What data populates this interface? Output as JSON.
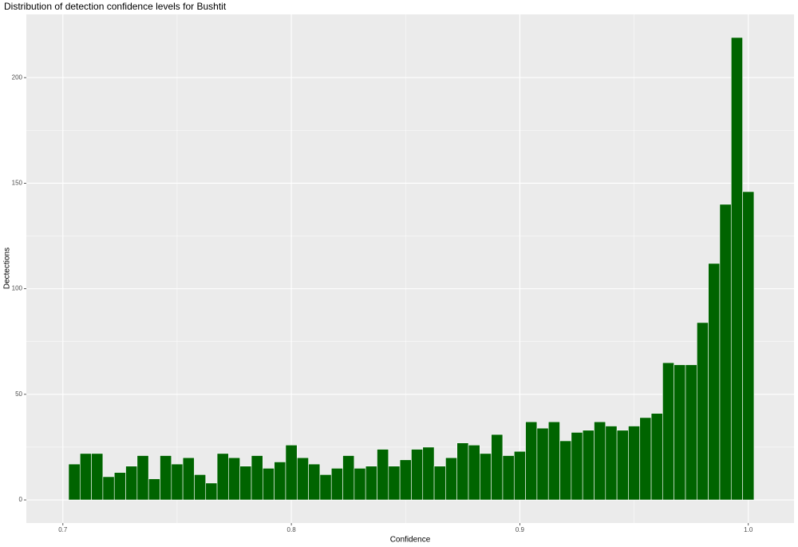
{
  "chart_data": {
    "type": "histogram",
    "title": "Distribution of detection confidence levels for Bushtit",
    "x_label": "Confidence",
    "y_label": "Dectections",
    "color": "#006400",
    "grid": true,
    "bins": [
      0.7025,
      0.7075,
      0.7125,
      0.7175,
      0.7225,
      0.7275,
      0.7325,
      0.7375,
      0.7425,
      0.7475,
      0.7525,
      0.7575,
      0.7625,
      0.7675,
      0.7725,
      0.7775,
      0.7825,
      0.7875,
      0.7925,
      0.7975,
      0.8025,
      0.8075,
      0.8125,
      0.8175,
      0.8225,
      0.8275,
      0.8325,
      0.8375,
      0.8425,
      0.8475,
      0.8525,
      0.8575,
      0.8625,
      0.8675,
      0.8725,
      0.8775,
      0.8825,
      0.8875,
      0.8925,
      0.8975,
      0.9025,
      0.9075,
      0.9125,
      0.9175,
      0.9225,
      0.9275,
      0.9325,
      0.9375,
      0.9425,
      0.9475,
      0.9525,
      0.9575,
      0.9625,
      0.9675,
      0.9725,
      0.9775,
      0.9825,
      0.9875,
      0.9925,
      0.9975,
      1.0025
    ],
    "values": [
      17,
      22,
      22,
      11,
      13,
      16,
      21,
      10,
      21,
      17,
      20,
      12,
      8,
      22,
      20,
      16,
      21,
      15,
      18,
      26,
      20,
      17,
      12,
      15,
      21,
      15,
      16,
      24,
      16,
      19,
      24,
      25,
      16,
      20,
      27,
      26,
      22,
      31,
      21,
      23,
      37,
      34,
      37,
      28,
      32,
      33,
      37,
      35,
      33,
      35,
      39,
      41,
      65,
      64,
      64,
      84,
      112,
      140,
      219,
      146
    ],
    "xlim": [
      0.684,
      1.02
    ],
    "ylim": [
      -10.95,
      229.95
    ],
    "xticks": [
      0.7,
      0.8,
      0.9,
      {
        "value": 1,
        "label": "1.0"
      }
    ],
    "yticks": [
      0,
      50,
      100,
      150,
      200
    ]
  }
}
